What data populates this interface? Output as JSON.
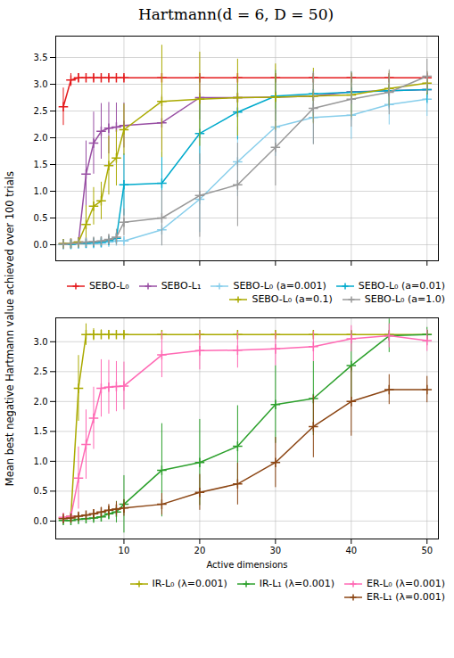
{
  "chart_data": [
    {
      "type": "line",
      "title": "Hartmann(d = 6, D = 50)",
      "ylabel": "Mean best negative Hartmann value achieved over 100 trials",
      "x": [
        2,
        3,
        4,
        5,
        6,
        7,
        8,
        9,
        10,
        15,
        20,
        25,
        30,
        35,
        40,
        45,
        50
      ],
      "series": [
        {
          "name": "SEBO-L₀",
          "color": "#e41a1c",
          "values": [
            2.58,
            3.08,
            3.12,
            3.12,
            3.12,
            3.12,
            3.12,
            3.12,
            3.12,
            3.12,
            3.12,
            3.12,
            3.12,
            3.12,
            3.12,
            3.12,
            3.12
          ],
          "errors": [
            0.35,
            0.12,
            0.08,
            0.07,
            0.06,
            0.05,
            0.05,
            0.05,
            0.05,
            0.05,
            0.05,
            0.05,
            0.05,
            0.05,
            0.05,
            0.05,
            0.05
          ]
        },
        {
          "name": "SEBO-L₁",
          "color": "#984ea3",
          "values": [
            0.02,
            0.03,
            0.05,
            1.32,
            1.9,
            2.12,
            2.18,
            2.2,
            2.23,
            2.28,
            2.75,
            2.75,
            2.76,
            2.78,
            2.86,
            2.88,
            2.9
          ],
          "errors": [
            0.02,
            0.03,
            0.05,
            0.62,
            0.58,
            0.52,
            0.48,
            0.45,
            0.42,
            0.52,
            0.42,
            0.38,
            0.32,
            0.28,
            0.22,
            0.18,
            0.15
          ]
        },
        {
          "name": "SEBO-L₀ (a=0.001)",
          "color": "#87ceeb",
          "values": [
            0.01,
            0.01,
            0.02,
            0.02,
            0.02,
            0.03,
            0.05,
            0.07,
            0.07,
            0.28,
            0.85,
            1.55,
            2.2,
            2.38,
            2.42,
            2.62,
            2.72
          ],
          "errors": [
            0.01,
            0.01,
            0.02,
            0.02,
            0.02,
            0.03,
            0.04,
            0.05,
            0.05,
            0.3,
            0.62,
            0.65,
            0.55,
            0.5,
            0.45,
            0.38,
            0.32
          ]
        },
        {
          "name": "SEBO-L₀ (a=0.01)",
          "color": "#00aacc",
          "values": [
            0.01,
            0.01,
            0.02,
            0.03,
            0.04,
            0.05,
            0.08,
            0.12,
            1.12,
            1.15,
            2.08,
            2.48,
            2.78,
            2.82,
            2.85,
            2.88,
            2.9
          ],
          "errors": [
            0.01,
            0.01,
            0.02,
            0.03,
            0.04,
            0.05,
            0.06,
            0.08,
            0.58,
            0.58,
            0.58,
            0.52,
            0.48,
            0.42,
            0.38,
            0.32,
            0.25
          ]
        },
        {
          "name": "SEBO-L₀ (a=0.1)",
          "color": "#aaaa00",
          "values": [
            0.02,
            0.03,
            0.05,
            0.38,
            0.72,
            0.82,
            1.48,
            1.62,
            2.15,
            2.68,
            2.72,
            2.75,
            2.76,
            2.78,
            2.8,
            2.92,
            3.02
          ],
          "errors": [
            0.02,
            0.03,
            0.05,
            0.35,
            0.35,
            0.35,
            0.55,
            0.52,
            0.48,
            1.05,
            0.88,
            0.72,
            0.62,
            0.52,
            0.42,
            0.32,
            0.22
          ]
        },
        {
          "name": "SEBO-L₀ (a=1.0)",
          "color": "#999999",
          "values": [
            0.01,
            0.02,
            0.03,
            0.05,
            0.06,
            0.07,
            0.1,
            0.14,
            0.42,
            0.5,
            0.92,
            1.12,
            1.82,
            2.55,
            2.72,
            2.85,
            3.15
          ],
          "errors": [
            0.01,
            0.02,
            0.03,
            0.05,
            0.06,
            0.07,
            0.1,
            0.15,
            0.25,
            0.52,
            0.78,
            0.78,
            0.72,
            0.68,
            0.52,
            0.42,
            0.32
          ]
        }
      ],
      "xlim": [
        1.0,
        51.5
      ],
      "xticks": [
        10,
        20,
        30,
        40,
        50
      ],
      "ylim": [
        -0.3,
        3.9
      ],
      "yticks": [
        {
          "value": 0.0,
          "label": "0.0"
        },
        0.5,
        {
          "value": 1.0,
          "label": "1.0"
        },
        1.5,
        {
          "value": 2.0,
          "label": "2.0"
        },
        2.5,
        {
          "value": 3.0,
          "label": "3.0"
        },
        3.5
      ],
      "grid": true,
      "legend": "lower right",
      "marker": "plus",
      "line_style": "solid",
      "tick_labels": "y"
    },
    {
      "type": "line",
      "xlabel": "Active dimensions",
      "x": [
        2,
        3,
        4,
        5,
        6,
        7,
        8,
        9,
        10,
        15,
        20,
        25,
        30,
        35,
        40,
        45,
        50
      ],
      "series": [
        {
          "name": "IR-L₀ (λ=0.001)",
          "color": "#aaaa00",
          "values": [
            0.05,
            0.08,
            2.22,
            3.12,
            3.12,
            3.12,
            3.12,
            3.12,
            3.12,
            3.12,
            3.12,
            3.12,
            3.12,
            3.12,
            3.12,
            3.12,
            3.12
          ],
          "errors": [
            0.04,
            0.06,
            0.55,
            0.18,
            0.1,
            0.08,
            0.07,
            0.06,
            0.05,
            0.05,
            0.05,
            0.05,
            0.05,
            0.05,
            0.05,
            0.05,
            0.05
          ]
        },
        {
          "name": "IR-L₁ (λ=0.001)",
          "color": "#2ca02c",
          "values": [
            0.01,
            0.01,
            0.03,
            0.04,
            0.05,
            0.07,
            0.12,
            0.15,
            0.28,
            0.85,
            0.98,
            1.25,
            1.95,
            2.05,
            2.6,
            3.1,
            3.12
          ],
          "errors": [
            0.01,
            0.01,
            0.03,
            0.04,
            0.05,
            0.06,
            0.1,
            0.18,
            0.48,
            0.78,
            0.72,
            0.68,
            0.65,
            0.62,
            0.58,
            0.28,
            0.12
          ]
        },
        {
          "name": "ER-L₀ (λ=0.001)",
          "color": "#ff69b4",
          "values": [
            0.06,
            0.08,
            0.72,
            1.28,
            1.72,
            2.22,
            2.24,
            2.25,
            2.26,
            2.78,
            2.85,
            2.86,
            2.88,
            2.92,
            3.05,
            3.1,
            3.02
          ],
          "errors": [
            0.05,
            0.06,
            0.52,
            0.58,
            0.52,
            0.48,
            0.45,
            0.42,
            0.4,
            0.38,
            0.32,
            0.3,
            0.28,
            0.25,
            0.22,
            0.2,
            0.18
          ]
        },
        {
          "name": "ER-L₁ (λ=0.001)",
          "color": "#8b4513",
          "values": [
            0.04,
            0.05,
            0.08,
            0.1,
            0.12,
            0.15,
            0.18,
            0.2,
            0.22,
            0.28,
            0.48,
            0.62,
            0.98,
            1.58,
            2.0,
            2.2,
            2.2
          ],
          "errors": [
            0.03,
            0.04,
            0.05,
            0.06,
            0.07,
            0.08,
            0.1,
            0.12,
            0.14,
            0.18,
            0.3,
            0.35,
            0.42,
            0.52,
            0.58,
            0.25,
            0.22
          ]
        }
      ],
      "xlim": [
        1.0,
        51.5
      ],
      "xticks": [
        10,
        20,
        30,
        40,
        50
      ],
      "ylim": [
        -0.3,
        3.4
      ],
      "yticks": [
        {
          "value": 0.0,
          "label": "0.0"
        },
        0.5,
        {
          "value": 1.0,
          "label": "1.0"
        },
        1.5,
        {
          "value": 2.0,
          "label": "2.0"
        },
        2.5,
        {
          "value": 3.0,
          "label": "3.0"
        }
      ],
      "grid": true,
      "legend": "lower right",
      "marker": "plus",
      "line_style": "solid"
    }
  ]
}
